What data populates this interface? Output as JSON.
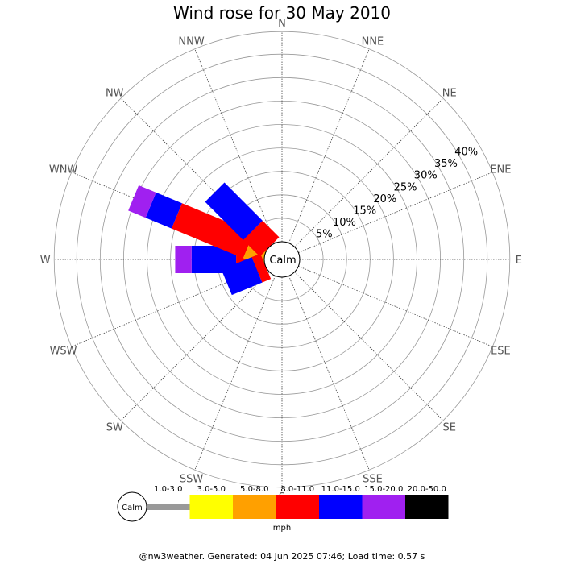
{
  "chart_data": {
    "type": "wind-rose",
    "title": "Wind rose for 30 May 2010",
    "directions": [
      "N",
      "NNE",
      "NE",
      "ENE",
      "E",
      "ESE",
      "SE",
      "SSE",
      "S",
      "SSW",
      "SW",
      "WSW",
      "W",
      "WNW",
      "NW",
      "NNW"
    ],
    "ring_labels": [
      "5%",
      "10%",
      "15%",
      "20%",
      "25%",
      "30%",
      "35%",
      "40%"
    ],
    "calm_label": "Calm",
    "unit_label": "mph",
    "speed_bins": [
      {
        "label": "1.0-3.0",
        "color": "#999999"
      },
      {
        "label": "3.0-5.0",
        "color": "#ffff00"
      },
      {
        "label": "5.0-8.0",
        "color": "#ffa000"
      },
      {
        "label": "8.0-11.0",
        "color": "#ff0000"
      },
      {
        "label": "11.0-15.0",
        "color": "#0000ff"
      },
      {
        "label": "15.0-20.0",
        "color": "#a020f0"
      },
      {
        "label": "20.0-50.0",
        "color": "#000000"
      }
    ],
    "series": [
      {
        "direction": "W",
        "cumulative": [
          0,
          0,
          0.5,
          6.0,
          15.5,
          19.0,
          19.0
        ]
      },
      {
        "direction": "WNW",
        "cumulative": [
          0,
          0,
          4.0,
          20.5,
          26.5,
          30.5,
          30.5
        ]
      },
      {
        "direction": "NW",
        "cumulative": [
          0,
          0,
          0,
          5.0,
          16.5,
          16.5,
          16.5
        ]
      },
      {
        "direction": "WSW",
        "cumulative": [
          0,
          0,
          0,
          2.0,
          9.0,
          9.0,
          9.0
        ]
      }
    ]
  },
  "footer": "@nw3weather. Generated: 04 Jun 2025 07:46; Load time: 0.57 s"
}
